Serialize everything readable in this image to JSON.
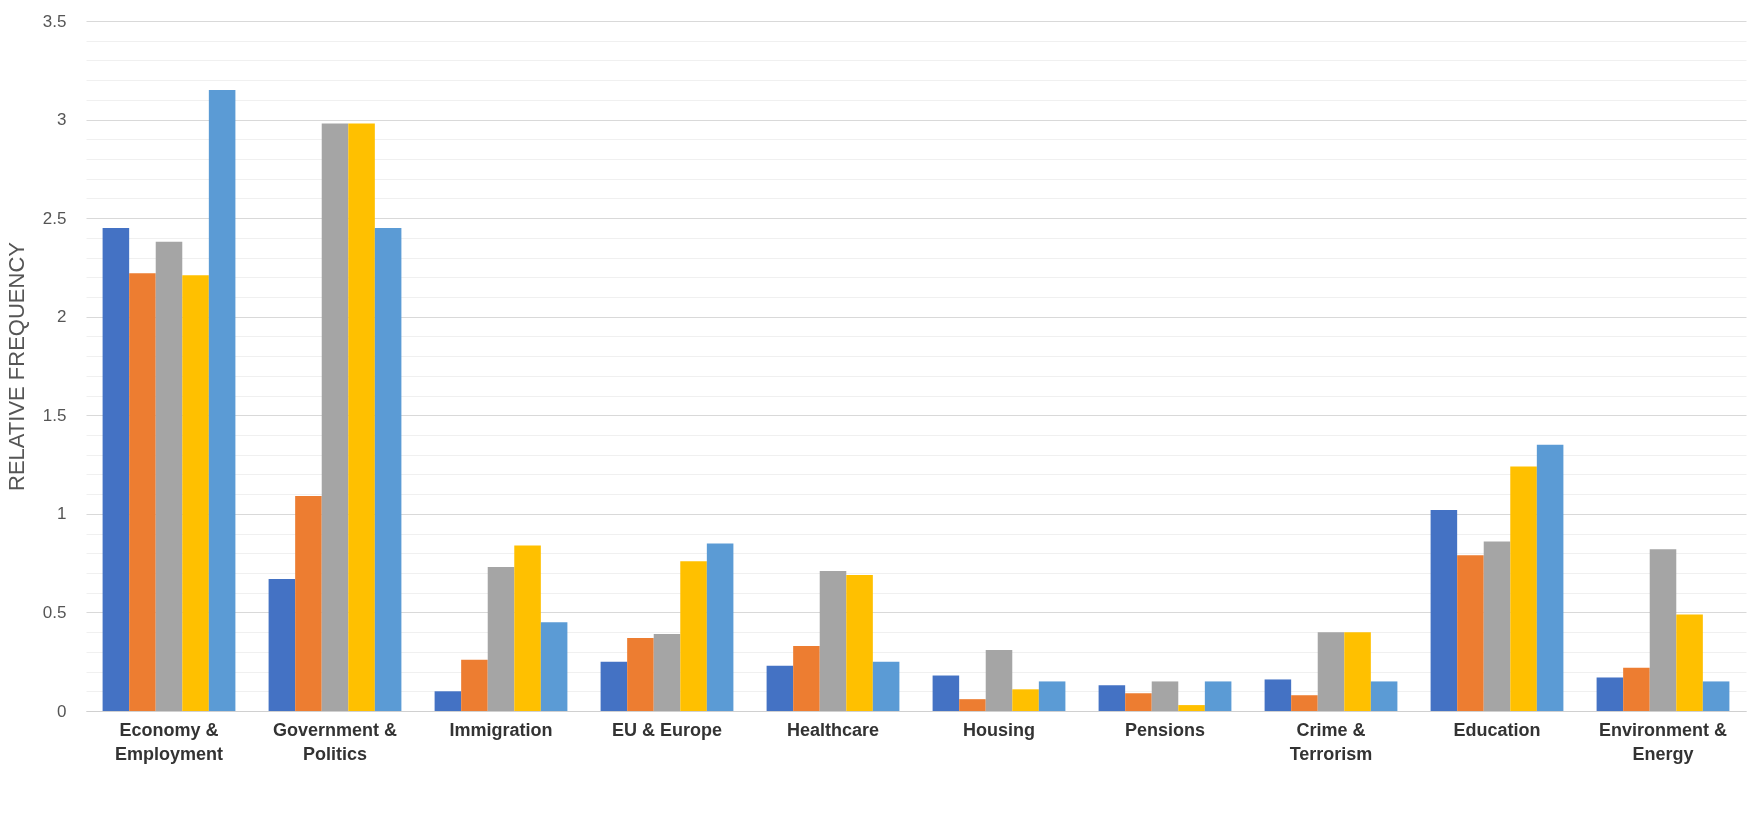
{
  "chart_data": {
    "type": "bar",
    "ylabel": "RELATIVE FREQUENCY",
    "categories": [
      "Economy & Employment",
      "Government & Politics",
      "Immigration",
      "EU & Europe",
      "Healthcare",
      "Housing",
      "Pensions",
      "Crime & Terrorism",
      "Education",
      "Environment & Energy"
    ],
    "series": [
      {
        "color": "#4472c4",
        "values": [
          2.45,
          0.67,
          0.1,
          0.25,
          0.23,
          0.18,
          0.13,
          0.16,
          1.02,
          0.17
        ]
      },
      {
        "color": "#ed7d31",
        "values": [
          2.22,
          1.09,
          0.26,
          0.37,
          0.33,
          0.06,
          0.09,
          0.08,
          0.79,
          0.22
        ]
      },
      {
        "color": "#a5a5a5",
        "values": [
          2.38,
          2.98,
          0.73,
          0.39,
          0.71,
          0.31,
          0.15,
          0.4,
          0.86,
          0.82
        ]
      },
      {
        "color": "#ffc000",
        "values": [
          2.21,
          2.98,
          0.84,
          0.76,
          0.69,
          0.11,
          0.03,
          0.4,
          1.24,
          0.49
        ]
      },
      {
        "color": "#5b9bd5",
        "values": [
          3.15,
          2.45,
          0.45,
          0.85,
          0.25,
          0.15,
          0.15,
          0.15,
          1.35,
          0.15
        ]
      }
    ],
    "ylim": [
      0,
      3.5
    ],
    "yticks": [
      0,
      {
        "value": 0.1,
        "label": null
      },
      {
        "value": 0.2,
        "label": null
      },
      {
        "value": 0.3,
        "label": null
      },
      {
        "value": 0.4,
        "label": null
      },
      0.5,
      {
        "value": 0.6,
        "label": null
      },
      {
        "value": 0.7,
        "label": null
      },
      {
        "value": 0.8,
        "label": null
      },
      {
        "value": 0.9,
        "label": null
      },
      1,
      {
        "value": 1.1,
        "label": null
      },
      {
        "value": 1.2,
        "label": null
      },
      {
        "value": 1.3,
        "label": null
      },
      {
        "value": 1.4,
        "label": null
      },
      1.5,
      {
        "value": 1.6,
        "label": null
      },
      {
        "value": 1.7,
        "label": null
      },
      {
        "value": 1.8,
        "label": null
      },
      {
        "value": 1.9,
        "label": null
      },
      2,
      {
        "value": 2.1,
        "label": null
      },
      {
        "value": 2.2,
        "label": null
      },
      {
        "value": 2.3,
        "label": null
      },
      {
        "value": 2.4,
        "label": null
      },
      2.5,
      {
        "value": 2.6,
        "label": null
      },
      {
        "value": 2.7,
        "label": null
      },
      {
        "value": 2.8,
        "label": null
      },
      {
        "value": 2.9,
        "label": null
      },
      3,
      {
        "value": 3.1,
        "label": null
      },
      {
        "value": 3.2,
        "label": null
      },
      {
        "value": 3.3,
        "label": null
      },
      {
        "value": 3.4,
        "label": null
      },
      3.5
    ],
    "grid": true
  }
}
